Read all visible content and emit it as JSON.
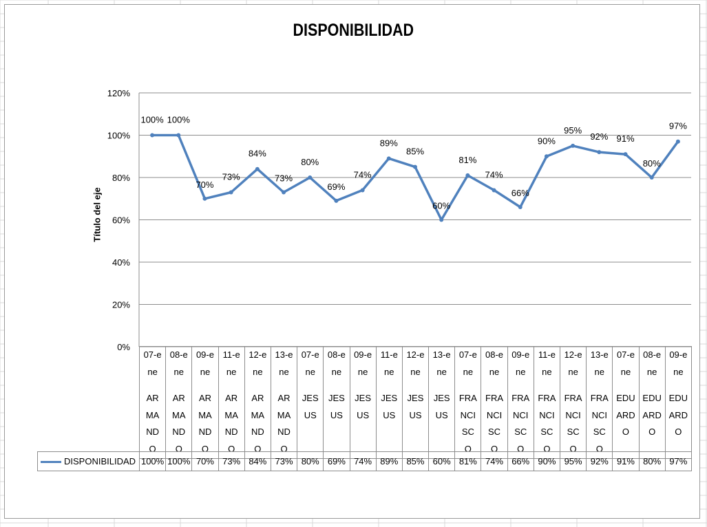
{
  "chart_data": {
    "type": "line",
    "title": "DISPONIBILIDAD",
    "ylabel": "Título del eje",
    "xlabel": "",
    "ylim": [
      0,
      120
    ],
    "yticks": [
      "0%",
      "20%",
      "40%",
      "60%",
      "80%",
      "100%",
      "120%"
    ],
    "grid": true,
    "legend": "data table, left",
    "color": "#4f81bd",
    "categories": [
      {
        "date": "07-ene",
        "name": "ARMANDO"
      },
      {
        "date": "08-ene",
        "name": "ARMANDO"
      },
      {
        "date": "09-ene",
        "name": "ARMANDO"
      },
      {
        "date": "11-ene",
        "name": "ARMANDO"
      },
      {
        "date": "12-ene",
        "name": "ARMANDO"
      },
      {
        "date": "13-ene",
        "name": "ARMANDO"
      },
      {
        "date": "07-ene",
        "name": "JESUS"
      },
      {
        "date": "08-ene",
        "name": "JESUS"
      },
      {
        "date": "09-ene",
        "name": "JESUS"
      },
      {
        "date": "11-ene",
        "name": "JESUS"
      },
      {
        "date": "12-ene",
        "name": "JESUS"
      },
      {
        "date": "13-ene",
        "name": "JESUS"
      },
      {
        "date": "07-ene",
        "name": "FRANCISCO"
      },
      {
        "date": "08-ene",
        "name": "FRANCISCO"
      },
      {
        "date": "09-ene",
        "name": "FRANCISCO"
      },
      {
        "date": "11-ene",
        "name": "FRANCISCO"
      },
      {
        "date": "12-ene",
        "name": "FRANCISCO"
      },
      {
        "date": "13-ene",
        "name": "FRANCISCO"
      },
      {
        "date": "07-ene",
        "name": "EDUARDO"
      },
      {
        "date": "08-ene",
        "name": "EDUARDO"
      },
      {
        "date": "09-ene",
        "name": "EDUARDO"
      }
    ],
    "series": [
      {
        "name": "DISPONIBILIDAD",
        "values": [
          100,
          100,
          70,
          73,
          84,
          73,
          80,
          69,
          74,
          89,
          85,
          60,
          81,
          74,
          66,
          90,
          95,
          92,
          91,
          80,
          97
        ],
        "labels": [
          "100%",
          "100%",
          "70%",
          "73%",
          "84%",
          "73%",
          "80%",
          "69%",
          "74%",
          "89%",
          "85%",
          "60%",
          "81%",
          "74%",
          "66%",
          "90%",
          "95%",
          "92%",
          "91%",
          "80%",
          "97%"
        ]
      }
    ]
  }
}
